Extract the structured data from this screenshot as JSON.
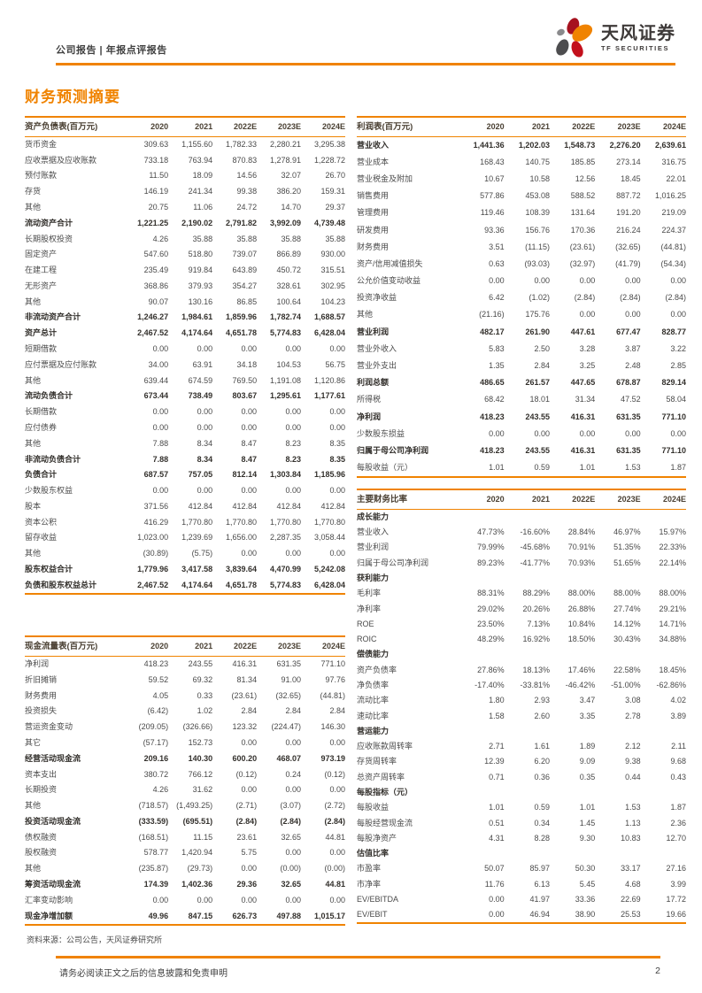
{
  "header": {
    "left_text": "公司报告 | 年报点评报告",
    "brand_cn": "天风证券",
    "brand_en": "TF SECURITIES"
  },
  "page_title": "财务预测摘要",
  "years": [
    "2020",
    "2021",
    "2022E",
    "2023E",
    "2024E"
  ],
  "colors": {
    "accent_orange": "#f08300",
    "petal_dark_red": "#a6121f",
    "petal_red": "#c3101c",
    "petal_gray": "#4d4d4f",
    "text_dark": "#3f3f3f"
  },
  "tables": {
    "balance_sheet": {
      "title": "资产负债表(百万元)",
      "rows": [
        {
          "label": "货币资金",
          "values": [
            "309.63",
            "1,155.60",
            "1,782.33",
            "2,280.21",
            "3,295.38"
          ]
        },
        {
          "label": "应收票据及应收账款",
          "values": [
            "733.18",
            "763.94",
            "870.83",
            "1,278.91",
            "1,228.72"
          ]
        },
        {
          "label": "预付账款",
          "values": [
            "11.50",
            "18.09",
            "14.56",
            "32.07",
            "26.70"
          ]
        },
        {
          "label": "存货",
          "values": [
            "146.19",
            "241.34",
            "99.38",
            "386.20",
            "159.31"
          ]
        },
        {
          "label": "其他",
          "values": [
            "20.75",
            "11.06",
            "24.72",
            "14.70",
            "29.37"
          ]
        },
        {
          "label": "流动资产合计",
          "bold": true,
          "values": [
            "1,221.25",
            "2,190.02",
            "2,791.82",
            "3,992.09",
            "4,739.48"
          ]
        },
        {
          "label": "长期股权投资",
          "values": [
            "4.26",
            "35.88",
            "35.88",
            "35.88",
            "35.88"
          ]
        },
        {
          "label": "固定资产",
          "values": [
            "547.60",
            "518.80",
            "739.07",
            "866.89",
            "930.00"
          ]
        },
        {
          "label": "在建工程",
          "values": [
            "235.49",
            "919.84",
            "643.89",
            "450.72",
            "315.51"
          ]
        },
        {
          "label": "无形资产",
          "values": [
            "368.86",
            "379.93",
            "354.27",
            "328.61",
            "302.95"
          ]
        },
        {
          "label": "其他",
          "values": [
            "90.07",
            "130.16",
            "86.85",
            "100.64",
            "104.23"
          ]
        },
        {
          "label": "非流动资产合计",
          "bold": true,
          "values": [
            "1,246.27",
            "1,984.61",
            "1,859.96",
            "1,782.74",
            "1,688.57"
          ]
        },
        {
          "label": "资产总计",
          "bold": true,
          "values": [
            "2,467.52",
            "4,174.64",
            "4,651.78",
            "5,774.83",
            "6,428.04"
          ]
        },
        {
          "label": "短期借款",
          "values": [
            "0.00",
            "0.00",
            "0.00",
            "0.00",
            "0.00"
          ]
        },
        {
          "label": "应付票据及应付账款",
          "values": [
            "34.00",
            "63.91",
            "34.18",
            "104.53",
            "56.75"
          ]
        },
        {
          "label": "其他",
          "values": [
            "639.44",
            "674.59",
            "769.50",
            "1,191.08",
            "1,120.86"
          ]
        },
        {
          "label": "流动负债合计",
          "bold": true,
          "values": [
            "673.44",
            "738.49",
            "803.67",
            "1,295.61",
            "1,177.61"
          ]
        },
        {
          "label": "长期借款",
          "values": [
            "0.00",
            "0.00",
            "0.00",
            "0.00",
            "0.00"
          ]
        },
        {
          "label": "应付债券",
          "values": [
            "0.00",
            "0.00",
            "0.00",
            "0.00",
            "0.00"
          ]
        },
        {
          "label": "其他",
          "values": [
            "7.88",
            "8.34",
            "8.47",
            "8.23",
            "8.35"
          ]
        },
        {
          "label": "非流动负债合计",
          "bold": true,
          "values": [
            "7.88",
            "8.34",
            "8.47",
            "8.23",
            "8.35"
          ]
        },
        {
          "label": "负债合计",
          "bold": true,
          "values": [
            "687.57",
            "757.05",
            "812.14",
            "1,303.84",
            "1,185.96"
          ]
        },
        {
          "label": "少数股东权益",
          "values": [
            "0.00",
            "0.00",
            "0.00",
            "0.00",
            "0.00"
          ]
        },
        {
          "label": "股本",
          "values": [
            "371.56",
            "412.84",
            "412.84",
            "412.84",
            "412.84"
          ]
        },
        {
          "label": "资本公积",
          "values": [
            "416.29",
            "1,770.80",
            "1,770.80",
            "1,770.80",
            "1,770.80"
          ]
        },
        {
          "label": "留存收益",
          "values": [
            "1,023.00",
            "1,239.69",
            "1,656.00",
            "2,287.35",
            "3,058.44"
          ]
        },
        {
          "label": "其他",
          "values": [
            "(30.89)",
            "(5.75)",
            "0.00",
            "0.00",
            "0.00"
          ]
        },
        {
          "label": "股东权益合计",
          "bold": true,
          "values": [
            "1,779.96",
            "3,417.58",
            "3,839.64",
            "4,470.99",
            "5,242.08"
          ]
        },
        {
          "label": "负债和股东权益总计",
          "bold": true,
          "values": [
            "2,467.52",
            "4,174.64",
            "4,651.78",
            "5,774.83",
            "6,428.04"
          ]
        }
      ]
    },
    "cash_flow": {
      "title": "现金流量表(百万元)",
      "rows": [
        {
          "label": "净利润",
          "values": [
            "418.23",
            "243.55",
            "416.31",
            "631.35",
            "771.10"
          ]
        },
        {
          "label": "折旧摊销",
          "values": [
            "59.52",
            "69.32",
            "81.34",
            "91.00",
            "97.76"
          ]
        },
        {
          "label": "财务费用",
          "values": [
            "4.05",
            "0.33",
            "(23.61)",
            "(32.65)",
            "(44.81)"
          ]
        },
        {
          "label": "投资损失",
          "values": [
            "(6.42)",
            "1.02",
            "2.84",
            "2.84",
            "2.84"
          ]
        },
        {
          "label": "营运资金变动",
          "values": [
            "(209.05)",
            "(326.66)",
            "123.32",
            "(224.47)",
            "146.30"
          ]
        },
        {
          "label": "其它",
          "values": [
            "(57.17)",
            "152.73",
            "0.00",
            "0.00",
            "0.00"
          ]
        },
        {
          "label": "经营活动现金流",
          "bold": true,
          "values": [
            "209.16",
            "140.30",
            "600.20",
            "468.07",
            "973.19"
          ]
        },
        {
          "label": "资本支出",
          "values": [
            "380.72",
            "766.12",
            "(0.12)",
            "0.24",
            "(0.12)"
          ]
        },
        {
          "label": "长期投资",
          "values": [
            "4.26",
            "31.62",
            "0.00",
            "0.00",
            "0.00"
          ]
        },
        {
          "label": "其他",
          "values": [
            "(718.57)",
            "(1,493.25)",
            "(2.71)",
            "(3.07)",
            "(2.72)"
          ]
        },
        {
          "label": "投资活动现金流",
          "bold": true,
          "values": [
            "(333.59)",
            "(695.51)",
            "(2.84)",
            "(2.84)",
            "(2.84)"
          ]
        },
        {
          "label": "债权融资",
          "values": [
            "(168.51)",
            "11.15",
            "23.61",
            "32.65",
            "44.81"
          ]
        },
        {
          "label": "股权融资",
          "values": [
            "578.77",
            "1,420.94",
            "5.75",
            "0.00",
            "0.00"
          ]
        },
        {
          "label": "其他",
          "values": [
            "(235.87)",
            "(29.73)",
            "0.00",
            "(0.00)",
            "(0.00)"
          ]
        },
        {
          "label": "筹资活动现金流",
          "bold": true,
          "values": [
            "174.39",
            "1,402.36",
            "29.36",
            "32.65",
            "44.81"
          ]
        },
        {
          "label": "汇率变动影响",
          "values": [
            "0.00",
            "0.00",
            "0.00",
            "0.00",
            "0.00"
          ]
        },
        {
          "label": "现金净增加额",
          "bold": true,
          "values": [
            "49.96",
            "847.15",
            "626.73",
            "497.88",
            "1,015.17"
          ]
        }
      ]
    },
    "income_statement": {
      "title": "利润表(百万元)",
      "rows": [
        {
          "label": "营业收入",
          "bold": true,
          "values": [
            "1,441.36",
            "1,202.03",
            "1,548.73",
            "2,276.20",
            "2,639.61"
          ]
        },
        {
          "label": "营业成本",
          "values": [
            "168.43",
            "140.75",
            "185.85",
            "273.14",
            "316.75"
          ]
        },
        {
          "label": "营业税金及附加",
          "values": [
            "10.67",
            "10.58",
            "12.56",
            "18.45",
            "22.01"
          ]
        },
        {
          "label": "销售费用",
          "values": [
            "577.86",
            "453.08",
            "588.52",
            "887.72",
            "1,016.25"
          ]
        },
        {
          "label": "管理费用",
          "values": [
            "119.46",
            "108.39",
            "131.64",
            "191.20",
            "219.09"
          ]
        },
        {
          "label": "研发费用",
          "values": [
            "93.36",
            "156.76",
            "170.36",
            "216.24",
            "224.37"
          ]
        },
        {
          "label": "财务费用",
          "values": [
            "3.51",
            "(11.15)",
            "(23.61)",
            "(32.65)",
            "(44.81)"
          ]
        },
        {
          "label": "资产/信用减值损失",
          "values": [
            "0.63",
            "(93.03)",
            "(32.97)",
            "(41.79)",
            "(54.34)"
          ]
        },
        {
          "label": "公允价值变动收益",
          "values": [
            "0.00",
            "0.00",
            "0.00",
            "0.00",
            "0.00"
          ]
        },
        {
          "label": "投资净收益",
          "values": [
            "6.42",
            "(1.02)",
            "(2.84)",
            "(2.84)",
            "(2.84)"
          ]
        },
        {
          "label": "其他",
          "values": [
            "(21.16)",
            "175.76",
            "0.00",
            "0.00",
            "0.00"
          ]
        },
        {
          "label": "营业利润",
          "bold": true,
          "values": [
            "482.17",
            "261.90",
            "447.61",
            "677.47",
            "828.77"
          ]
        },
        {
          "label": "营业外收入",
          "values": [
            "5.83",
            "2.50",
            "3.28",
            "3.87",
            "3.22"
          ]
        },
        {
          "label": "营业外支出",
          "values": [
            "1.35",
            "2.84",
            "3.25",
            "2.48",
            "2.85"
          ]
        },
        {
          "label": "利润总额",
          "bold": true,
          "values": [
            "486.65",
            "261.57",
            "447.65",
            "678.87",
            "829.14"
          ]
        },
        {
          "label": "所得税",
          "values": [
            "68.42",
            "18.01",
            "31.34",
            "47.52",
            "58.04"
          ]
        },
        {
          "label": "净利润",
          "bold": true,
          "values": [
            "418.23",
            "243.55",
            "416.31",
            "631.35",
            "771.10"
          ]
        },
        {
          "label": "少数股东损益",
          "values": [
            "0.00",
            "0.00",
            "0.00",
            "0.00",
            "0.00"
          ]
        },
        {
          "label": "归属于母公司净利润",
          "bold": true,
          "values": [
            "418.23",
            "243.55",
            "416.31",
            "631.35",
            "771.10"
          ]
        },
        {
          "label": "每股收益（元）",
          "values": [
            "1.01",
            "0.59",
            "1.01",
            "1.53",
            "1.87"
          ]
        }
      ]
    },
    "ratios": {
      "title": "主要财务比率",
      "rows": [
        {
          "label": "成长能力",
          "section": true,
          "values": [
            "",
            "",
            "",
            "",
            ""
          ]
        },
        {
          "label": "营业收入",
          "values": [
            "47.73%",
            "-16.60%",
            "28.84%",
            "46.97%",
            "15.97%"
          ]
        },
        {
          "label": "营业利润",
          "values": [
            "79.99%",
            "-45.68%",
            "70.91%",
            "51.35%",
            "22.33%"
          ]
        },
        {
          "label": "归属于母公司净利润",
          "values": [
            "89.23%",
            "-41.77%",
            "70.93%",
            "51.65%",
            "22.14%"
          ]
        },
        {
          "label": "获利能力",
          "section": true,
          "values": [
            "",
            "",
            "",
            "",
            ""
          ]
        },
        {
          "label": "毛利率",
          "values": [
            "88.31%",
            "88.29%",
            "88.00%",
            "88.00%",
            "88.00%"
          ]
        },
        {
          "label": "净利率",
          "values": [
            "29.02%",
            "20.26%",
            "26.88%",
            "27.74%",
            "29.21%"
          ]
        },
        {
          "label": "ROE",
          "values": [
            "23.50%",
            "7.13%",
            "10.84%",
            "14.12%",
            "14.71%"
          ]
        },
        {
          "label": "ROIC",
          "values": [
            "48.29%",
            "16.92%",
            "18.50%",
            "30.43%",
            "34.88%"
          ]
        },
        {
          "label": "偿债能力",
          "section": true,
          "values": [
            "",
            "",
            "",
            "",
            ""
          ]
        },
        {
          "label": "资产负债率",
          "values": [
            "27.86%",
            "18.13%",
            "17.46%",
            "22.58%",
            "18.45%"
          ]
        },
        {
          "label": "净负债率",
          "values": [
            "-17.40%",
            "-33.81%",
            "-46.42%",
            "-51.00%",
            "-62.86%"
          ]
        },
        {
          "label": "流动比率",
          "values": [
            "1.80",
            "2.93",
            "3.47",
            "3.08",
            "4.02"
          ]
        },
        {
          "label": "速动比率",
          "values": [
            "1.58",
            "2.60",
            "3.35",
            "2.78",
            "3.89"
          ]
        },
        {
          "label": "营运能力",
          "section": true,
          "values": [
            "",
            "",
            "",
            "",
            ""
          ]
        },
        {
          "label": "应收账款周转率",
          "values": [
            "2.71",
            "1.61",
            "1.89",
            "2.12",
            "2.11"
          ]
        },
        {
          "label": "存货周转率",
          "values": [
            "12.39",
            "6.20",
            "9.09",
            "9.38",
            "9.68"
          ]
        },
        {
          "label": "总资产周转率",
          "values": [
            "0.71",
            "0.36",
            "0.35",
            "0.44",
            "0.43"
          ]
        },
        {
          "label": "每股指标（元）",
          "section": true,
          "values": [
            "",
            "",
            "",
            "",
            ""
          ]
        },
        {
          "label": "每股收益",
          "values": [
            "1.01",
            "0.59",
            "1.01",
            "1.53",
            "1.87"
          ]
        },
        {
          "label": "每股经营现金流",
          "values": [
            "0.51",
            "0.34",
            "1.45",
            "1.13",
            "2.36"
          ]
        },
        {
          "label": "每股净资产",
          "values": [
            "4.31",
            "8.28",
            "9.30",
            "10.83",
            "12.70"
          ]
        },
        {
          "label": "估值比率",
          "section": true,
          "values": [
            "",
            "",
            "",
            "",
            ""
          ]
        },
        {
          "label": "市盈率",
          "values": [
            "50.07",
            "85.97",
            "50.30",
            "33.17",
            "27.16"
          ]
        },
        {
          "label": "市净率",
          "values": [
            "11.76",
            "6.13",
            "5.45",
            "4.68",
            "3.99"
          ]
        },
        {
          "label": "EV/EBITDA",
          "values": [
            "0.00",
            "41.97",
            "33.36",
            "22.69",
            "17.72"
          ]
        },
        {
          "label": "EV/EBIT",
          "values": [
            "0.00",
            "46.94",
            "38.90",
            "25.53",
            "19.66"
          ]
        }
      ]
    }
  },
  "source_note": "资料来源：公司公告，天风证券研究所",
  "footer": {
    "disclaimer": "请务必阅读正文之后的信息披露和免责申明",
    "page_number": "2"
  }
}
